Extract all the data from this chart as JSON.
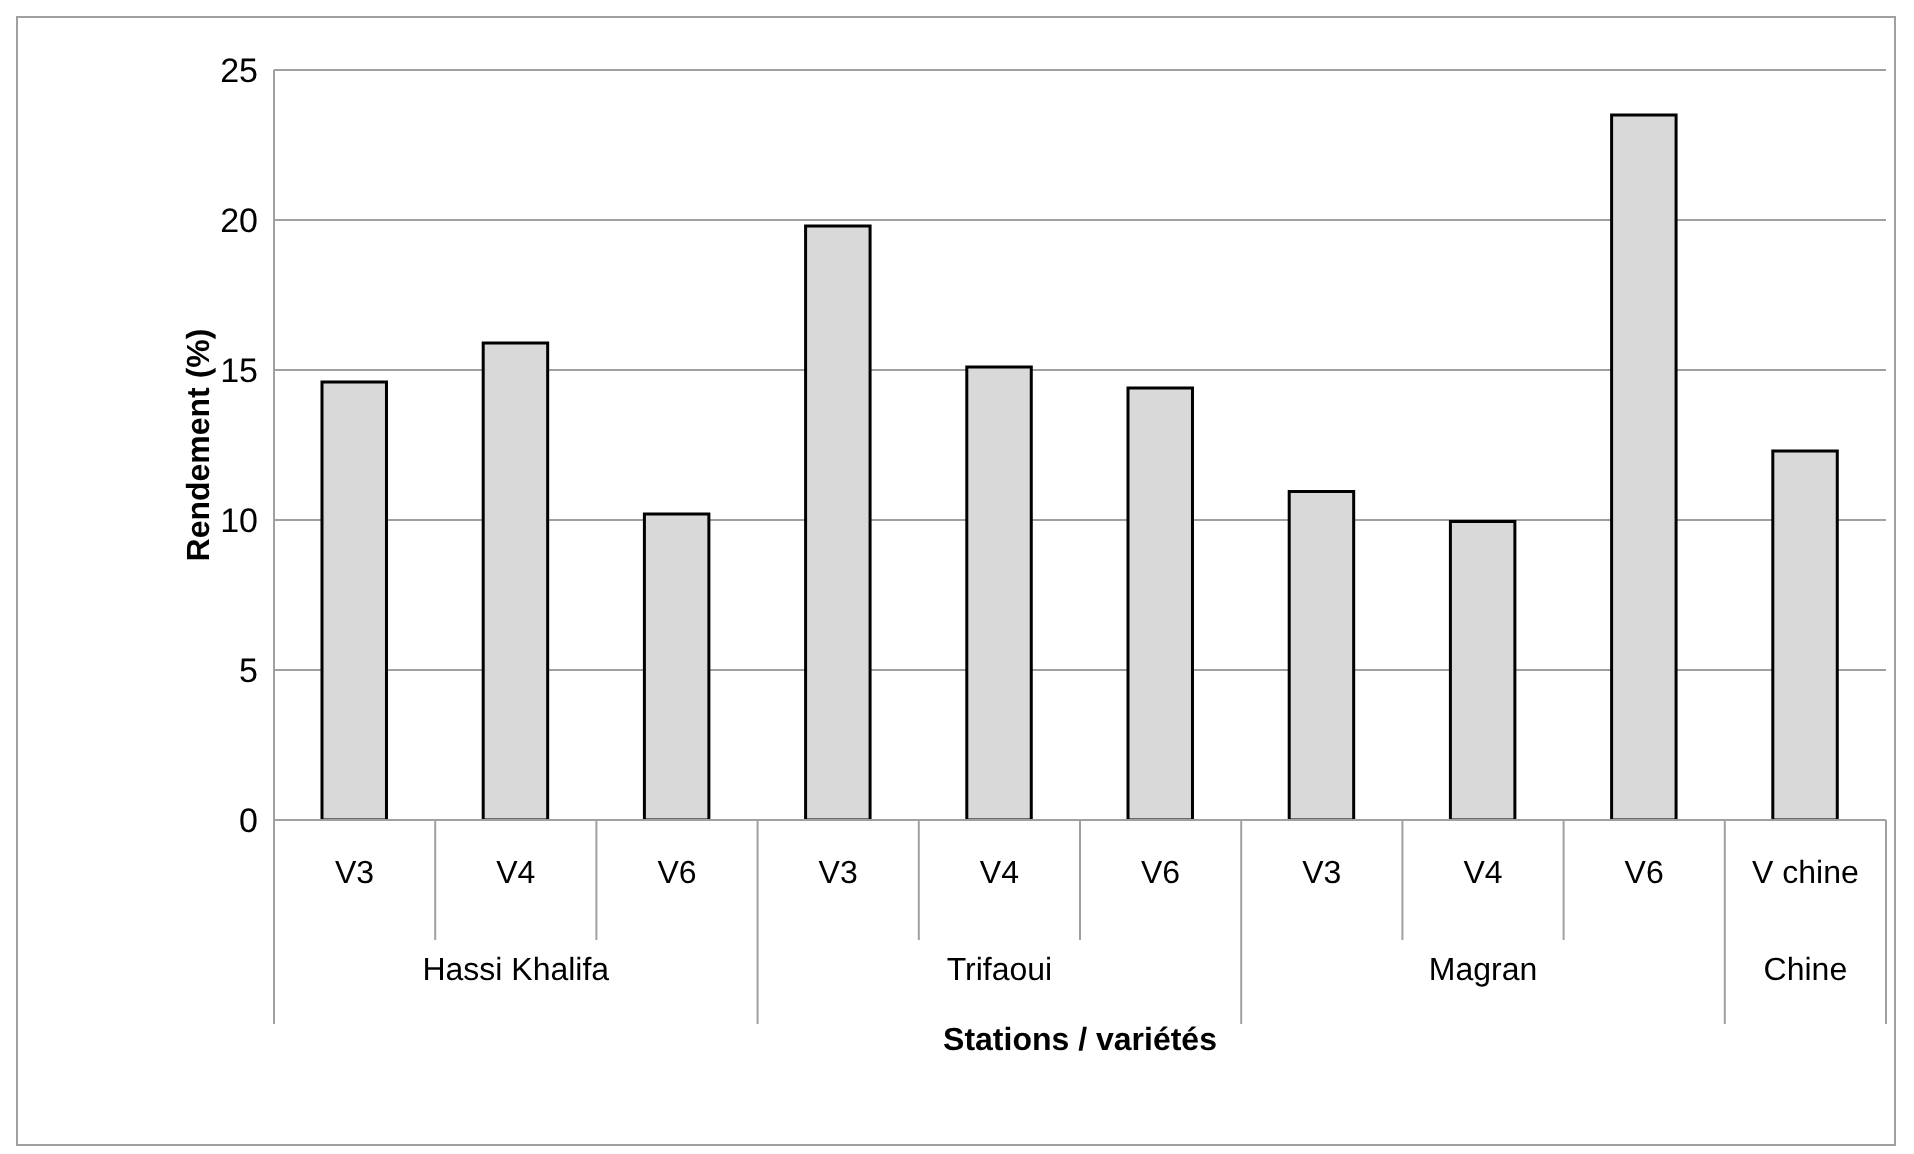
{
  "chart_data": {
    "type": "bar",
    "xlabel": "Stations / variétés",
    "ylabel": "Rendement (%)",
    "categories": [
      "V3",
      "V4",
      "V6",
      "V3",
      "V4",
      "V6",
      "V3",
      "V4",
      "V6",
      "V chine"
    ],
    "values": [
      14.6,
      15.9,
      10.2,
      19.8,
      15.1,
      14.4,
      10.95,
      9.95,
      23.5,
      12.3
    ],
    "color": "#d9d9d9",
    "ylim": [
      0,
      25
    ],
    "yticks": [
      0,
      5,
      10,
      15,
      20,
      25
    ],
    "grid": "y",
    "annotations": [
      "Hassi Khalifa",
      "Trifaoui",
      "Magran",
      "Chine"
    ]
  }
}
